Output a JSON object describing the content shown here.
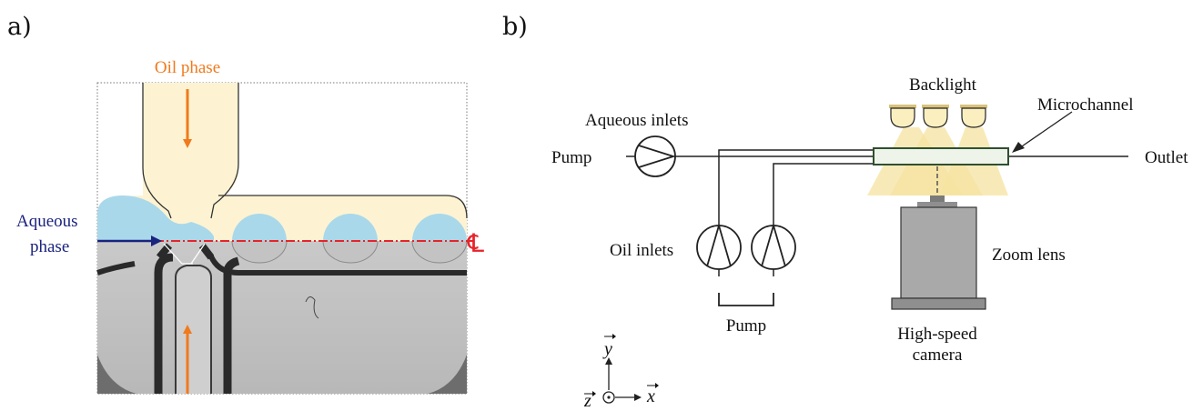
{
  "panel_a": {
    "label": "a)",
    "oil_phase_label": "Oil phase",
    "aqueous_label_line1": "Aqueous",
    "aqueous_label_line2": "phase",
    "centerline_symbol": "℄",
    "colors": {
      "oil": "#fdf3d2",
      "aqueous": "#a9d8ea",
      "arrow_orange": "#f07a1c",
      "arrow_navy": "#1a237e",
      "centerline": "#e8232a"
    }
  },
  "panel_b": {
    "label": "b)",
    "aqueous_inlets": "Aqueous inlets",
    "pump_left": "Pump",
    "oil_inlets": "Oil inlets",
    "pump_bottom": "Pump",
    "backlight": "Backlight",
    "microchannel": "Microchannel",
    "outlet": "Outlet",
    "zoom_lens": "Zoom lens",
    "camera_line1": "High-speed",
    "camera_line2": "camera",
    "axis_y": "y",
    "axis_x": "x",
    "axis_z": "z",
    "colors": {
      "light_cone": "#f5e3a0",
      "camera_body": "#a9a9a9",
      "channel_fill": "#eef4ea",
      "channel_stroke": "#2f4f2f"
    }
  }
}
